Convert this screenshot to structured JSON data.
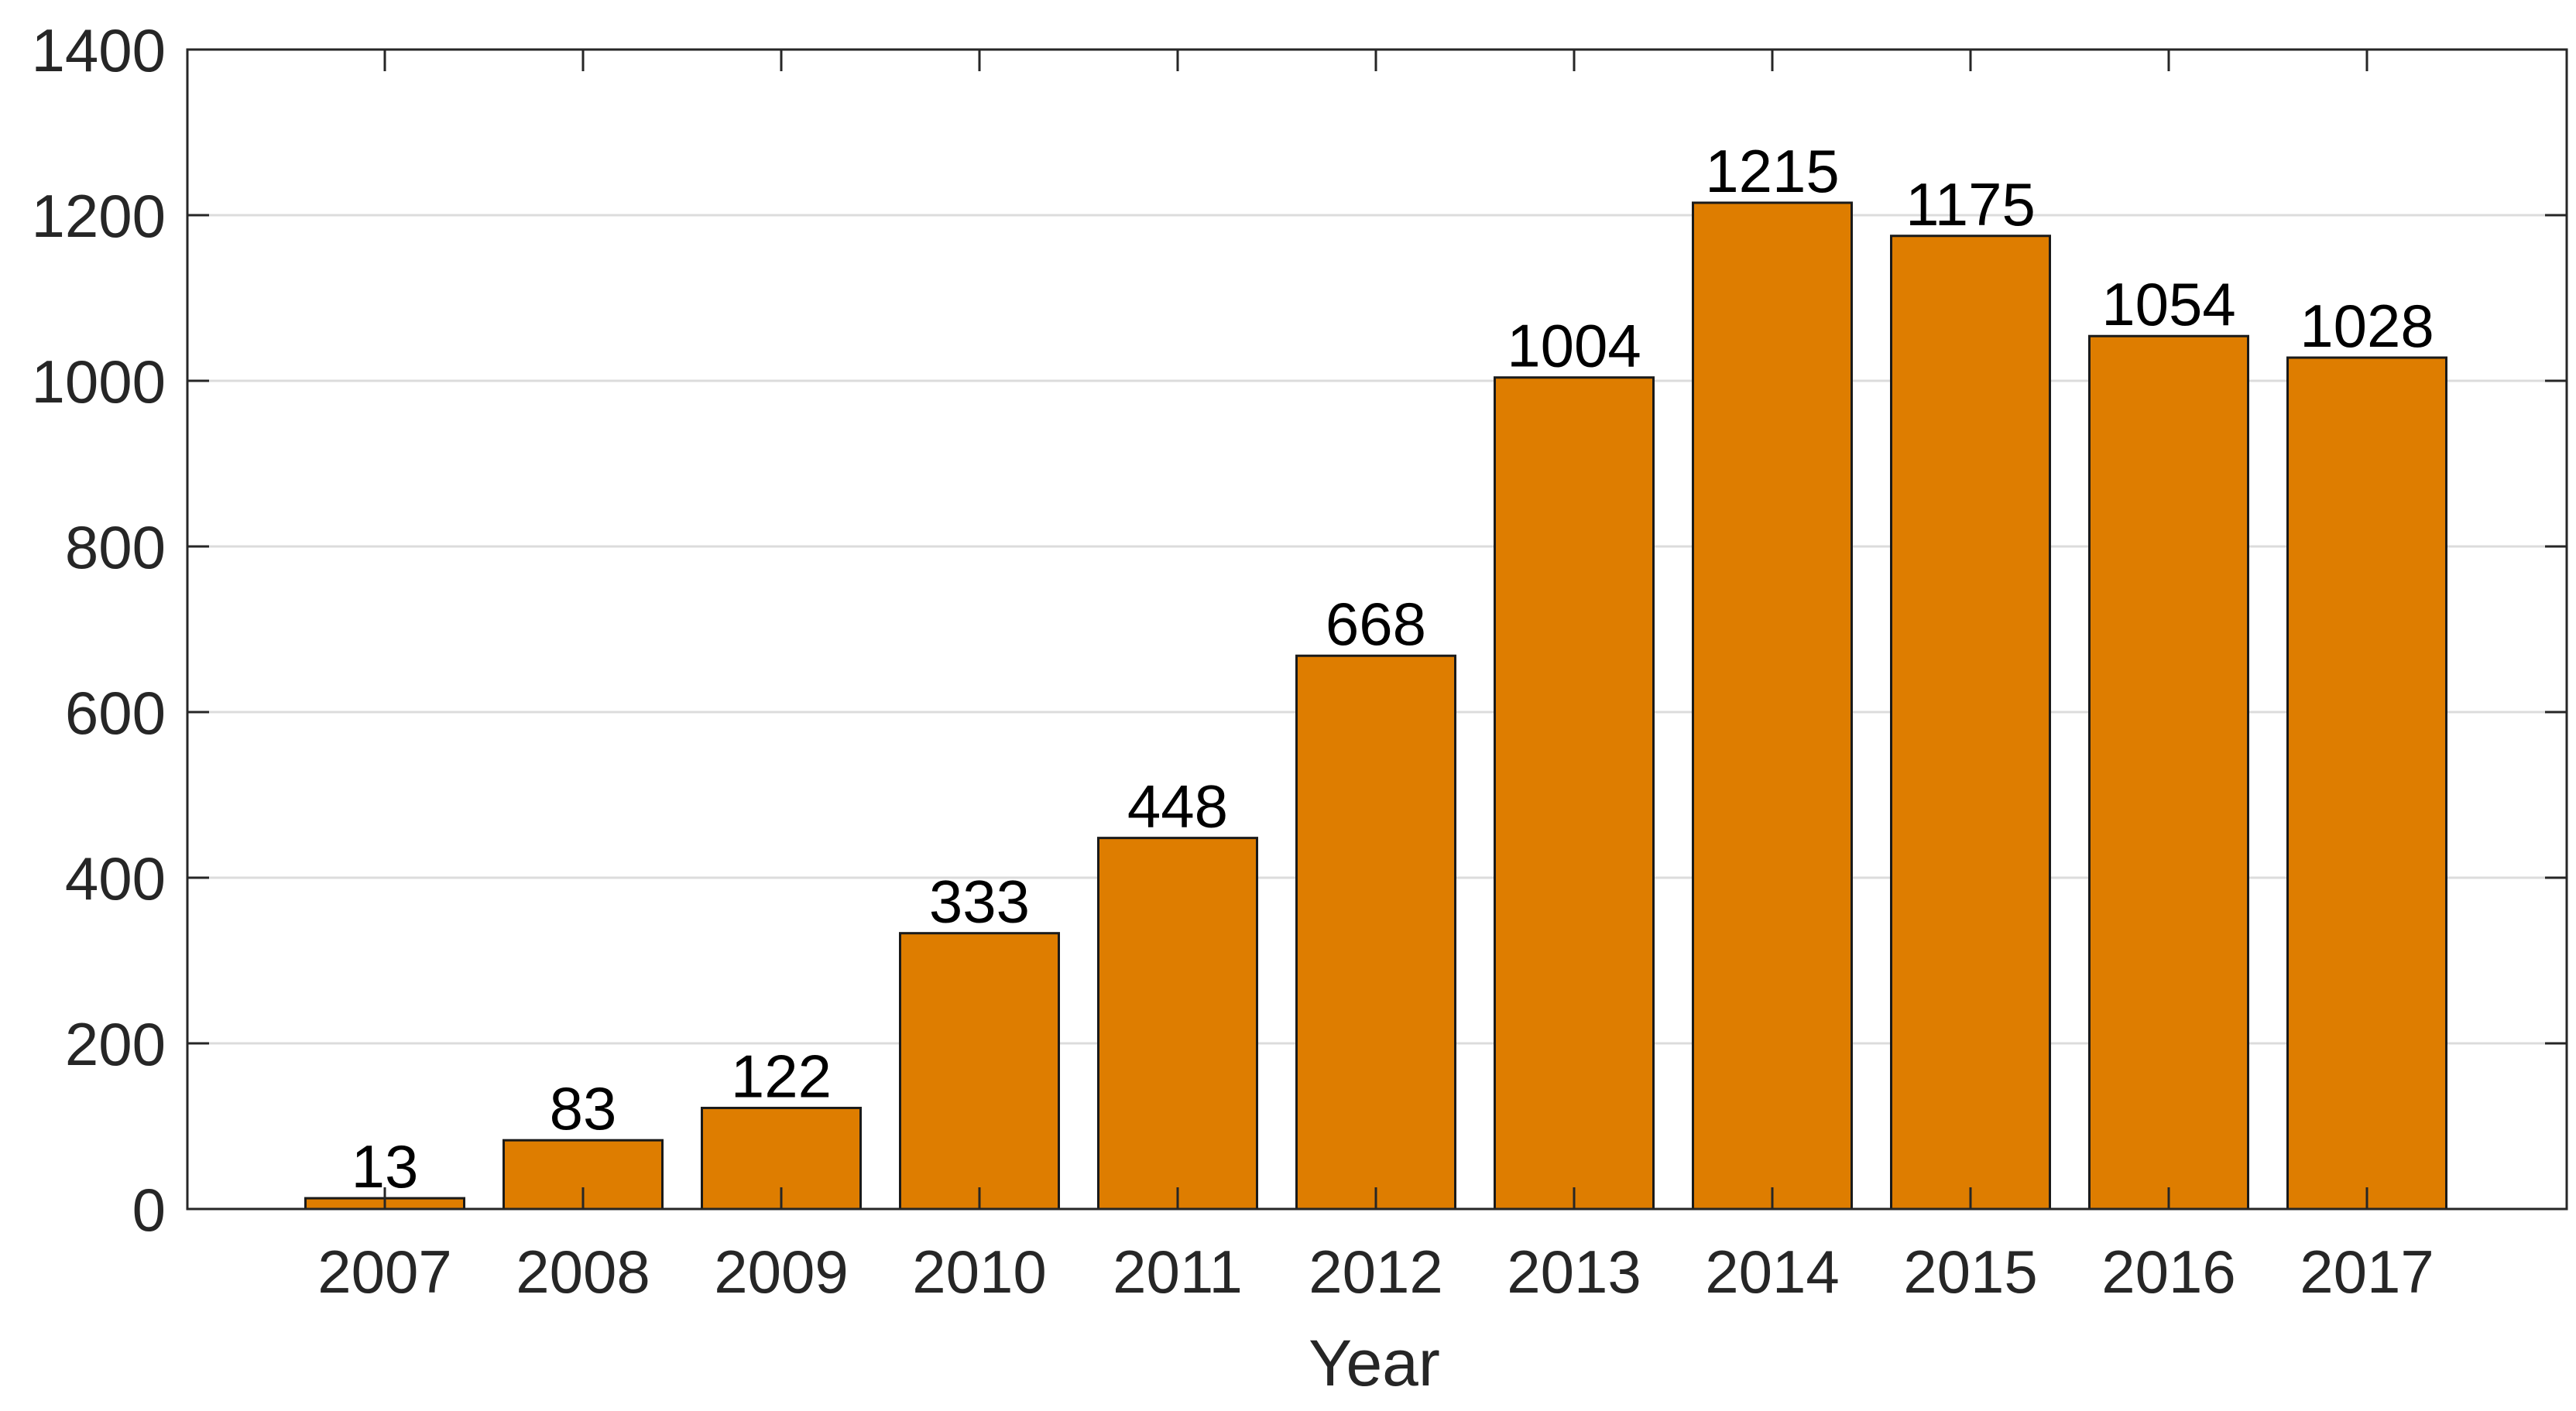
{
  "chart_data": {
    "type": "bar",
    "title": "",
    "xlabel": "Year",
    "ylabel": "",
    "categories": [
      "2007",
      "2008",
      "2009",
      "2010",
      "2011",
      "2012",
      "2013",
      "2014",
      "2015",
      "2016",
      "2017"
    ],
    "values": [
      13,
      83,
      122,
      333,
      448,
      668,
      1004,
      1215,
      1175,
      1054,
      1028
    ],
    "data_labels": [
      "13",
      "83",
      "122",
      "333",
      "448",
      "668",
      "1004",
      "1215",
      "1175",
      "1054",
      "1028"
    ],
    "ylim": [
      0,
      1400
    ],
    "yticks": [
      0,
      200,
      400,
      600,
      800,
      1000,
      1200,
      1400
    ],
    "ytick_labels": [
      "0",
      "200",
      "400",
      "600",
      "800",
      "1000",
      "1200",
      "1400"
    ],
    "grid": "horizontal",
    "legend": "none",
    "colors": {
      "bar_fill": "#DE7D00",
      "bar_edge": "#1a1a1a",
      "axis": "#262626",
      "grid": "#dcdcdc",
      "tick_text": "#262626",
      "label_text": "#000000"
    }
  }
}
